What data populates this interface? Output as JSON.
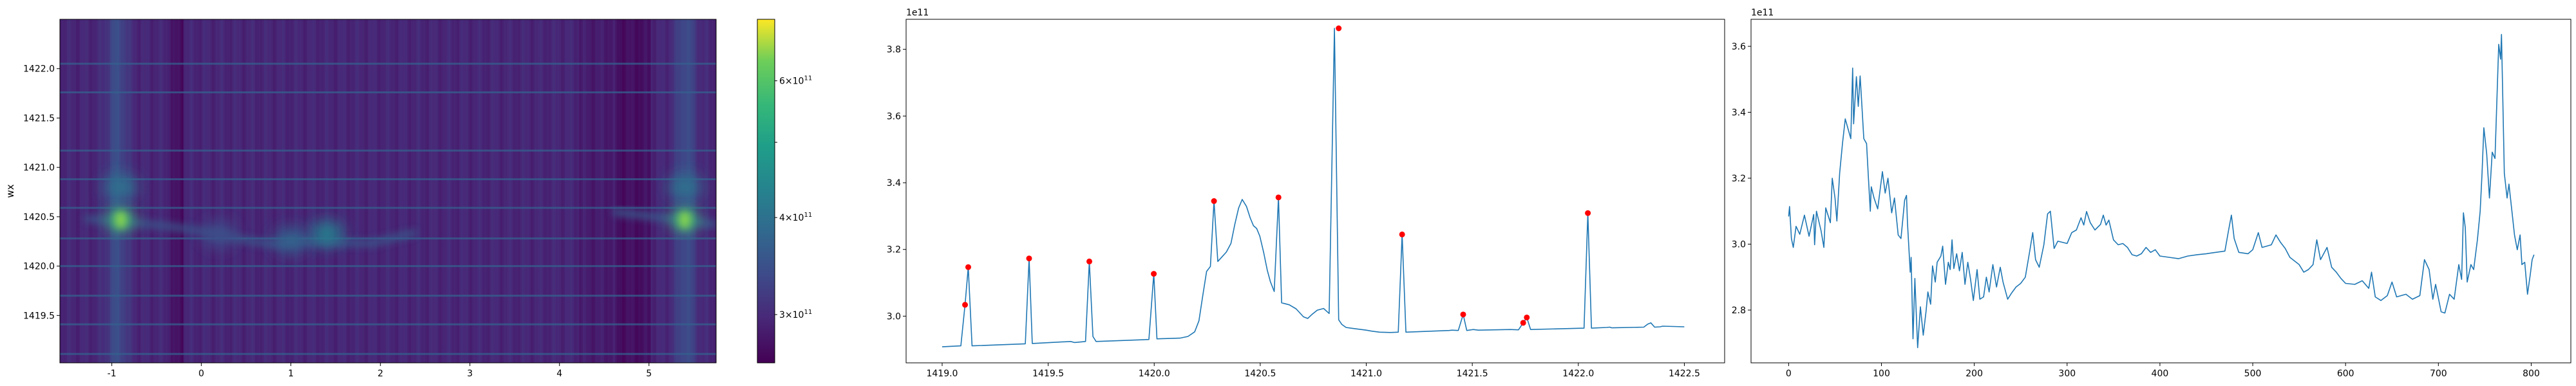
{
  "chart_data": [
    {
      "type": "heatmap",
      "ylabel": "wx",
      "xlim": [
        -1.58,
        5.75
      ],
      "ylim": [
        1419.02,
        1422.5
      ],
      "xticks": [
        "-1",
        "0",
        "1",
        "2",
        "3",
        "4",
        "5"
      ],
      "yticks": [
        "1419.5",
        "1420.0",
        "1420.5",
        "1421.0",
        "1421.5",
        "1422.0"
      ],
      "colormap": "viridis",
      "colorbar": {
        "scale": "log",
        "range": [
          260000000000.0,
          720000000000.0
        ],
        "ticks": [
          {
            "value": 300000000000.0,
            "mantissa": "3",
            "base": "10",
            "exp": "11"
          },
          {
            "value": 400000000000.0,
            "mantissa": "4",
            "base": "10",
            "exp": "11"
          },
          {
            "value": 500000000000.0,
            "mantissa": "",
            "base": "",
            "exp": ""
          },
          {
            "value": 600000000000.0,
            "mantissa": "6",
            "base": "10",
            "exp": "11"
          }
        ]
      },
      "horizontal_lines_wx": [
        1419.11,
        1419.41,
        1419.7,
        1420.0,
        1420.28,
        1420.59,
        1420.88,
        1421.17,
        1421.76,
        1422.05
      ],
      "bright_columns_x": [
        -0.95,
        5.4
      ],
      "dark_columns_x": [
        [
          -0.35,
          -0.2
        ],
        [
          4.6,
          5.0
        ]
      ],
      "hotspots": [
        {
          "x": -0.9,
          "wx": 1420.47,
          "value": 650000000000.0
        },
        {
          "x": -0.9,
          "wx": 1420.8,
          "value": 430000000000.0
        },
        {
          "x": 5.4,
          "wx": 1420.47,
          "value": 650000000000.0
        },
        {
          "x": 5.4,
          "wx": 1420.8,
          "value": 430000000000.0
        },
        {
          "x": 1.4,
          "wx": 1420.33,
          "value": 460000000000.0
        },
        {
          "x": 0.2,
          "wx": 1420.32,
          "value": 360000000000.0
        },
        {
          "x": 1.0,
          "wx": 1420.26,
          "value": 400000000000.0
        }
      ]
    },
    {
      "type": "line",
      "offset_text": "1e11",
      "xlim": [
        1418.83,
        1422.69
      ],
      "ylim": [
        2.86,
        3.89
      ],
      "xticks": [
        "1419.0",
        "1419.5",
        "1420.0",
        "1420.5",
        "1421.0",
        "1421.5",
        "1422.0",
        "1422.5"
      ],
      "yticks": [
        "3.0",
        "3.2",
        "3.4",
        "3.6",
        "3.8"
      ],
      "line_color": "#1f77b4",
      "marker_color": "#ff0000",
      "x": [
        1419.0,
        1419.088,
        1419.108,
        1419.123,
        1419.141,
        1419.392,
        1419.41,
        1419.425,
        1419.606,
        1419.624,
        1419.676,
        1419.694,
        1419.711,
        1419.726,
        1419.975,
        1419.998,
        1420.013,
        1420.121,
        1420.159,
        1420.191,
        1420.211,
        1420.229,
        1420.247,
        1420.265,
        1420.282,
        1420.3,
        1420.323,
        1420.34,
        1420.362,
        1420.38,
        1420.398,
        1420.415,
        1420.435,
        1420.453,
        1420.468,
        1420.483,
        1420.498,
        1420.516,
        1420.533,
        1420.548,
        1420.566,
        1420.586,
        1420.601,
        1420.637,
        1420.669,
        1420.704,
        1420.724,
        1420.744,
        1420.769,
        1420.799,
        1420.825,
        1420.85,
        1420.87,
        1420.885,
        1420.905,
        1420.938,
        1421.0,
        1421.025,
        1421.063,
        1421.113,
        1421.151,
        1421.169,
        1421.187,
        1421.391,
        1421.404,
        1421.434,
        1421.457,
        1421.474,
        1421.504,
        1421.529,
        1421.68,
        1421.718,
        1421.74,
        1421.757,
        1421.775,
        1422.027,
        1422.045,
        1422.062,
        1422.133,
        1422.148,
        1422.158,
        1422.309,
        1422.327,
        1422.342,
        1422.36,
        1422.385,
        1422.398,
        1422.5
      ],
      "y": [
        2.908,
        2.911,
        3.034,
        3.147,
        2.911,
        2.917,
        3.173,
        2.918,
        2.924,
        2.921,
        2.924,
        3.164,
        2.939,
        2.924,
        2.93,
        3.127,
        2.932,
        2.934,
        2.939,
        2.953,
        2.986,
        3.062,
        3.134,
        3.149,
        3.345,
        3.164,
        3.18,
        3.192,
        3.218,
        3.275,
        3.324,
        3.35,
        3.329,
        3.294,
        3.271,
        3.263,
        3.24,
        3.191,
        3.138,
        3.103,
        3.074,
        3.356,
        3.04,
        3.034,
        3.022,
        2.998,
        2.993,
        3.005,
        3.018,
        3.023,
        3.008,
        3.863,
        2.989,
        2.975,
        2.966,
        2.963,
        2.958,
        2.955,
        2.952,
        2.951,
        2.952,
        3.245,
        2.952,
        2.957,
        2.958,
        2.957,
        3.005,
        2.957,
        2.96,
        2.958,
        2.96,
        2.959,
        2.98,
        2.996,
        2.96,
        2.964,
        3.309,
        2.964,
        2.966,
        2.967,
        2.965,
        2.967,
        2.976,
        2.98,
        2.967,
        2.968,
        2.97,
        2.968
      ],
      "peaks": {
        "x": [
          1419.108,
          1419.123,
          1419.41,
          1419.694,
          1419.998,
          1420.282,
          1420.586,
          1420.87,
          1421.169,
          1421.457,
          1421.74,
          1421.757,
          1422.045
        ],
        "y": [
          3.034,
          3.147,
          3.173,
          3.164,
          3.127,
          3.345,
          3.356,
          3.863,
          3.245,
          3.005,
          2.98,
          2.996,
          3.309
        ]
      }
    },
    {
      "type": "line",
      "offset_text": "1e11",
      "xlim": [
        -40.5,
        842.7
      ],
      "ylim": [
        2.64,
        3.682
      ],
      "xticks": [
        "0",
        "100",
        "200",
        "300",
        "400",
        "500",
        "600",
        "700",
        "800"
      ],
      "yticks": [
        "2.8",
        "3.0",
        "3.2",
        "3.4",
        "3.6"
      ],
      "line_color": "#1f77b4",
      "x": [
        0,
        1,
        3,
        5,
        8,
        12,
        17,
        22,
        27,
        28,
        30,
        35,
        38,
        40,
        45,
        47,
        50,
        52,
        55,
        58,
        61,
        64,
        67,
        69,
        70,
        73,
        75,
        77,
        79,
        81,
        84,
        86,
        88,
        89,
        92,
        96,
        101,
        104,
        107,
        111,
        114,
        118,
        121,
        125,
        127,
        128,
        131,
        132,
        134,
        136,
        139,
        142,
        145,
        148,
        150,
        153,
        155,
        158,
        160,
        164,
        166,
        169,
        172,
        174,
        176,
        178,
        181,
        184,
        187,
        190,
        193,
        196,
        199,
        203,
        206,
        210,
        213,
        216,
        220,
        224,
        228,
        231,
        236,
        240,
        245,
        250,
        255,
        260,
        263,
        266,
        270,
        275,
        279,
        282,
        286,
        290,
        300,
        305,
        310,
        315,
        318,
        321,
        325,
        330,
        336,
        339,
        342,
        345,
        350,
        355,
        360,
        365,
        370,
        375,
        380,
        385,
        390,
        395,
        400,
        410,
        420,
        430,
        440,
        450,
        460,
        470,
        474,
        477,
        480,
        485,
        495,
        500,
        506,
        510,
        515,
        520,
        525,
        530,
        535,
        540,
        545,
        550,
        555,
        560,
        565,
        569,
        573,
        580,
        585,
        590,
        595,
        600,
        610,
        618,
        625,
        628,
        632,
        638,
        645,
        650,
        655,
        665,
        672,
        680,
        685,
        690,
        694,
        697,
        703,
        707,
        712,
        717,
        722,
        725,
        727,
        729,
        731,
        735,
        738,
        742,
        745,
        747,
        749,
        752,
        755,
        758,
        761,
        765,
        767,
        768,
        771,
        774,
        776,
        780,
        782,
        785,
        788,
        790,
        793,
        796,
        799,
        801,
        803
      ],
      "y": [
        3.084,
        3.114,
        3.017,
        2.99,
        3.054,
        3.03,
        3.088,
        3.024,
        3.09,
        2.998,
        3.1,
        3.04,
        2.99,
        3.11,
        3.065,
        3.2,
        3.14,
        3.07,
        3.215,
        3.305,
        3.38,
        3.35,
        3.32,
        3.534,
        3.365,
        3.508,
        3.418,
        3.51,
        3.418,
        3.32,
        3.305,
        3.2,
        3.1,
        3.174,
        3.14,
        3.107,
        3.22,
        3.155,
        3.2,
        3.095,
        3.14,
        3.028,
        3.017,
        3.133,
        3.148,
        3.065,
        2.915,
        2.96,
        2.713,
        2.896,
        2.686,
        2.81,
        2.724,
        2.795,
        2.855,
        2.818,
        2.934,
        2.885,
        2.945,
        2.964,
        2.994,
        2.878,
        2.945,
        2.923,
        3.013,
        2.926,
        2.971,
        2.919,
        2.975,
        2.878,
        2.945,
        2.893,
        2.829,
        2.923,
        2.833,
        2.84,
        2.9,
        2.855,
        2.938,
        2.87,
        2.93,
        2.885,
        2.833,
        2.851,
        2.87,
        2.881,
        2.9,
        2.983,
        3.035,
        2.953,
        2.93,
        2.998,
        3.092,
        3.1,
        2.987,
        3.009,
        3.002,
        3.035,
        3.043,
        3.08,
        3.058,
        3.099,
        3.065,
        3.043,
        3.06,
        3.088,
        3.058,
        3.073,
        3.013,
        2.998,
        3.002,
        2.99,
        2.968,
        2.964,
        2.971,
        2.99,
        2.975,
        2.983,
        2.964,
        2.96,
        2.956,
        2.964,
        2.968,
        2.971,
        2.975,
        2.979,
        3.043,
        3.088,
        3.017,
        2.975,
        2.971,
        2.983,
        3.035,
        2.99,
        2.994,
        2.998,
        3.028,
        3.005,
        2.987,
        2.96,
        2.949,
        2.938,
        2.915,
        2.923,
        2.938,
        3.013,
        2.953,
        2.99,
        2.93,
        2.915,
        2.896,
        2.881,
        2.878,
        2.889,
        2.866,
        2.915,
        2.84,
        2.829,
        2.844,
        2.885,
        2.84,
        2.848,
        2.833,
        2.844,
        2.953,
        2.923,
        2.833,
        2.878,
        2.795,
        2.791,
        2.848,
        2.833,
        2.938,
        2.893,
        3.095,
        3.05,
        2.885,
        2.938,
        2.923,
        3.013,
        3.1,
        3.215,
        3.353,
        3.275,
        3.14,
        3.279,
        3.26,
        3.606,
        3.561,
        3.636,
        3.215,
        3.14,
        3.182,
        3.08,
        3.028,
        2.983,
        3.028,
        2.938,
        2.945,
        2.848,
        2.908,
        2.953,
        2.968
      ]
    }
  ]
}
